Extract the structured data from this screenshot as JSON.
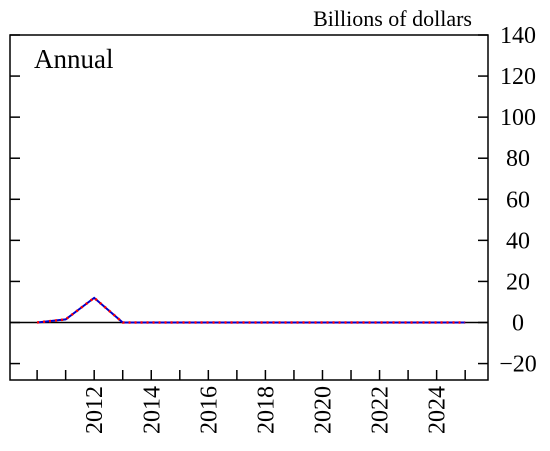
{
  "chart_data": {
    "type": "line",
    "y_axis_label": "Billions of dollars",
    "annotation": "Annual",
    "x": [
      2010,
      2011,
      2012,
      2013,
      2014,
      2015,
      2016,
      2017,
      2018,
      2019,
      2020,
      2021,
      2022,
      2023,
      2024,
      2025
    ],
    "series": [
      {
        "color": "#0000cc",
        "style": "solid",
        "values": [
          0,
          1.5,
          12,
          0,
          0,
          0,
          0,
          0,
          0,
          0,
          0,
          0,
          0,
          0,
          0,
          0
        ]
      },
      {
        "color": "#ff0000",
        "style": "dotted",
        "values": [
          0,
          1.5,
          12,
          0,
          0,
          0,
          0,
          0,
          0,
          0,
          0,
          0,
          0,
          0,
          0,
          0
        ]
      }
    ],
    "xlim": [
      2009.05,
      2025.8
    ],
    "xticks": [
      2012,
      2014,
      2016,
      2018,
      2020,
      2022,
      2024
    ],
    "xminor_ticks": [
      2010,
      2011,
      2013,
      2015,
      2017,
      2019,
      2021,
      2023,
      2025
    ],
    "ylim": [
      -28,
      140
    ],
    "yticks": [
      {
        "value": -20,
        "label": "−20"
      },
      0,
      20,
      40,
      60,
      80,
      100,
      120,
      140
    ],
    "zero_line": true
  }
}
